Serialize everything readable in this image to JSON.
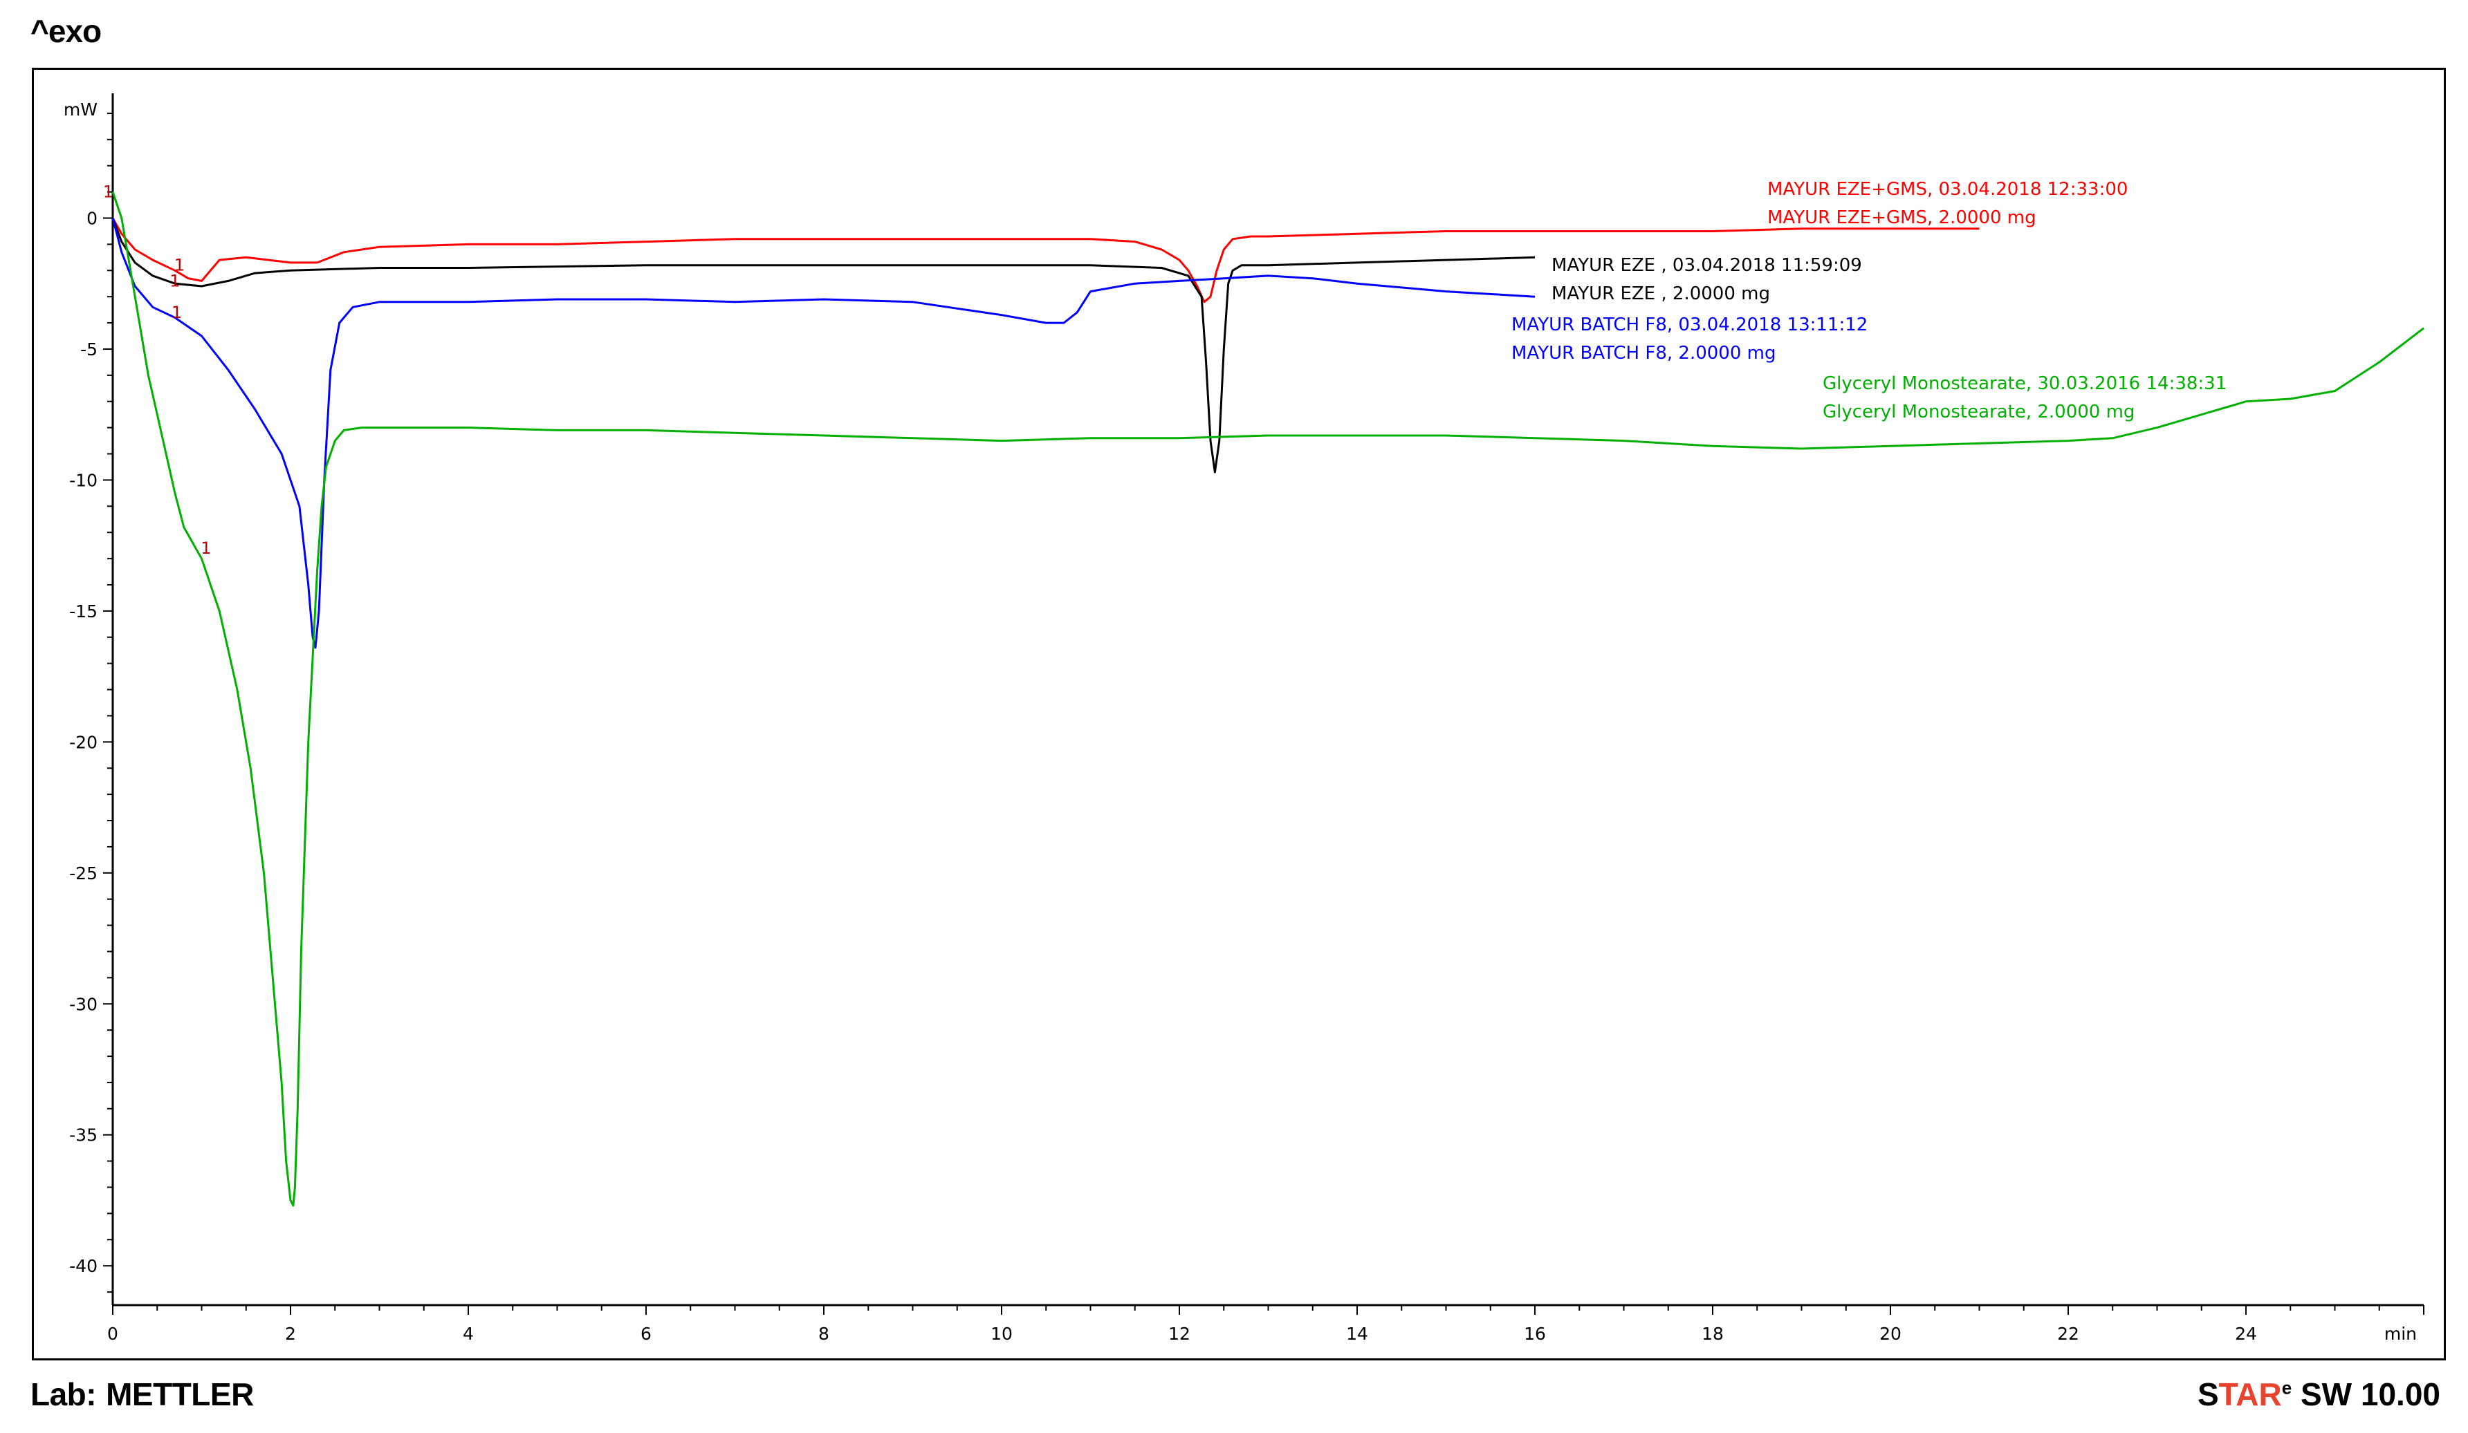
{
  "header": {
    "exo_label": "^exo"
  },
  "footer": {
    "lab_prefix": "Lab:",
    "lab_name": "METTLER",
    "software_star_s": "S",
    "software_star_tar": "TAR",
    "software_sup": "e",
    "software_rest": " SW 10.00"
  },
  "colors": {
    "red": "#ff0000",
    "black": "#000000",
    "blue": "#0000ff",
    "green": "#00b000",
    "marker": "#c00000",
    "star_accent": "#e8432c"
  },
  "chart_data": {
    "type": "line",
    "title": "",
    "xlabel": "min",
    "ylabel": "mW",
    "xlim": [
      0,
      26
    ],
    "ylim": [
      -41.5,
      4.5
    ],
    "x_ticks": [
      0,
      2,
      4,
      6,
      8,
      10,
      12,
      14,
      16,
      18,
      20,
      22,
      24
    ],
    "x_tick_labels": [
      "0",
      "2",
      "4",
      "6",
      "8",
      "10",
      "12",
      "14",
      "16",
      "18",
      "20",
      "22",
      "24"
    ],
    "x_unit_label": "min",
    "y_ticks": [
      0,
      -5,
      -10,
      -15,
      -20,
      -25,
      -30,
      -35,
      -40
    ],
    "y_tick_labels": [
      "0",
      "-5",
      "-10",
      "-15",
      "-20",
      "-25",
      "-30",
      "-35",
      "-40"
    ],
    "y_unit_label": "mW",
    "grid": false,
    "legend": "inline-right",
    "series": [
      {
        "name": "MAYUR EZE+GMS",
        "color": "#ff0000",
        "label_lines": [
          "MAYUR EZE+GMS, 03.04.2018 12:33:00",
          "MAYUR EZE+GMS, 2.0000 mg"
        ],
        "x": [
          0,
          0.1,
          0.25,
          0.45,
          0.7,
          0.85,
          1.0,
          1.2,
          1.5,
          2.0,
          2.3,
          2.6,
          3.0,
          4.0,
          5.0,
          6.0,
          7.0,
          8.0,
          9.0,
          10.0,
          11.0,
          11.5,
          11.8,
          12.0,
          12.1,
          12.2,
          12.28,
          12.35,
          12.42,
          12.5,
          12.6,
          12.8,
          13.0,
          14.0,
          15.0,
          16.0,
          17.0,
          18.0,
          19.0,
          20.0,
          21.0
        ],
        "y": [
          0,
          -0.6,
          -1.2,
          -1.6,
          -2.0,
          -2.3,
          -2.4,
          -1.6,
          -1.5,
          -1.7,
          -1.7,
          -1.3,
          -1.1,
          -1.0,
          -1.0,
          -0.9,
          -0.8,
          -0.8,
          -0.8,
          -0.8,
          -0.8,
          -0.9,
          -1.2,
          -1.6,
          -2.0,
          -2.6,
          -3.2,
          -3.0,
          -2.0,
          -1.2,
          -0.8,
          -0.7,
          -0.7,
          -0.6,
          -0.5,
          -0.5,
          -0.5,
          -0.5,
          -0.4,
          -0.4,
          -0.4
        ]
      },
      {
        "name": "MAYUR EZE",
        "color": "#000000",
        "label_lines": [
          "MAYUR EZE , 03.04.2018 11:59:09",
          "MAYUR EZE , 2.0000 mg"
        ],
        "x": [
          0,
          0.1,
          0.25,
          0.45,
          0.7,
          1.0,
          1.3,
          1.6,
          2.0,
          3.0,
          4.0,
          6.0,
          8.0,
          10.0,
          11.0,
          11.8,
          12.1,
          12.25,
          12.3,
          12.35,
          12.4,
          12.45,
          12.5,
          12.55,
          12.6,
          12.7,
          13.0,
          14.0,
          15.0,
          16.0
        ],
        "y": [
          0,
          -0.9,
          -1.7,
          -2.2,
          -2.5,
          -2.6,
          -2.4,
          -2.1,
          -2.0,
          -1.9,
          -1.9,
          -1.8,
          -1.8,
          -1.8,
          -1.8,
          -1.9,
          -2.2,
          -3.0,
          -5.5,
          -8.5,
          -9.7,
          -8.5,
          -5.0,
          -2.5,
          -2.0,
          -1.8,
          -1.8,
          -1.7,
          -1.6,
          -1.5
        ]
      },
      {
        "name": "MAYUR BATCH F8",
        "color": "#0000ff",
        "label_lines": [
          "MAYUR BATCH F8, 03.04.2018 13:11:12",
          "MAYUR BATCH F8, 2.0000 mg"
        ],
        "x": [
          0,
          0.1,
          0.25,
          0.45,
          0.7,
          1.0,
          1.3,
          1.6,
          1.9,
          2.1,
          2.2,
          2.25,
          2.28,
          2.32,
          2.38,
          2.45,
          2.55,
          2.7,
          3.0,
          4.0,
          5.0,
          6.0,
          7.0,
          8.0,
          9.0,
          10.0,
          10.5,
          10.7,
          10.85,
          11.0,
          11.5,
          12.0,
          12.5,
          13.0,
          13.5,
          14.0,
          15.0,
          16.0
        ],
        "y": [
          0,
          -1.3,
          -2.6,
          -3.4,
          -3.8,
          -4.5,
          -5.8,
          -7.3,
          -9.0,
          -11.0,
          -14.0,
          -16.0,
          -16.4,
          -15.0,
          -10.0,
          -5.8,
          -4.0,
          -3.4,
          -3.2,
          -3.2,
          -3.1,
          -3.1,
          -3.2,
          -3.1,
          -3.2,
          -3.7,
          -4.0,
          -4.0,
          -3.6,
          -2.8,
          -2.5,
          -2.4,
          -2.3,
          -2.2,
          -2.3,
          -2.5,
          -2.8,
          -3.0
        ]
      },
      {
        "name": "Glyceryl Monostearate",
        "color": "#00b000",
        "label_lines": [
          "Glyceryl Monostearate, 30.03.2016 14:38:31",
          "Glyceryl Monostearate, 2.0000 mg"
        ],
        "x": [
          0,
          0.1,
          0.2,
          0.3,
          0.4,
          0.5,
          0.6,
          0.7,
          0.8,
          1.0,
          1.2,
          1.4,
          1.55,
          1.7,
          1.8,
          1.9,
          1.95,
          2.0,
          2.03,
          2.05,
          2.08,
          2.12,
          2.2,
          2.3,
          2.35,
          2.4,
          2.5,
          2.6,
          2.8,
          3.0,
          4.0,
          5.0,
          6.0,
          7.0,
          8.0,
          9.0,
          10.0,
          11.0,
          12.0,
          13.0,
          14.0,
          15.0,
          16.0,
          17.0,
          18.0,
          19.0,
          20.0,
          21.0,
          22.0,
          22.5,
          23.0,
          23.5,
          24.0,
          24.5,
          25.0,
          25.5,
          26.0
        ],
        "y": [
          1.0,
          0.0,
          -2.0,
          -4.0,
          -6.0,
          -7.5,
          -9.0,
          -10.5,
          -11.8,
          -13.0,
          -15.0,
          -18.0,
          -21.0,
          -25.0,
          -29.0,
          -33.0,
          -36.0,
          -37.5,
          -37.7,
          -37.0,
          -34.0,
          -28.0,
          -20.0,
          -13.5,
          -11.0,
          -9.5,
          -8.5,
          -8.1,
          -8.0,
          -8.0,
          -8.0,
          -8.1,
          -8.1,
          -8.2,
          -8.3,
          -8.4,
          -8.5,
          -8.4,
          -8.4,
          -8.3,
          -8.3,
          -8.3,
          -8.4,
          -8.5,
          -8.7,
          -8.8,
          -8.7,
          -8.6,
          -8.5,
          -8.4,
          -8.0,
          -7.5,
          -7.0,
          -6.9,
          -6.6,
          -5.5,
          -4.2
        ]
      }
    ],
    "markers": [
      {
        "text": "1",
        "color": "#c00000",
        "x": 0.75,
        "y": -1.8
      },
      {
        "text": "1",
        "color": "#c00000",
        "x": 0.7,
        "y": -2.4
      },
      {
        "text": "1",
        "color": "#c00000",
        "x": 0.72,
        "y": -3.6
      },
      {
        "text": "1",
        "color": "#c00000",
        "x": 1.05,
        "y": -12.6
      },
      {
        "text": "1",
        "color": "#c00000",
        "x": -0.05,
        "y": 1.0
      }
    ]
  }
}
